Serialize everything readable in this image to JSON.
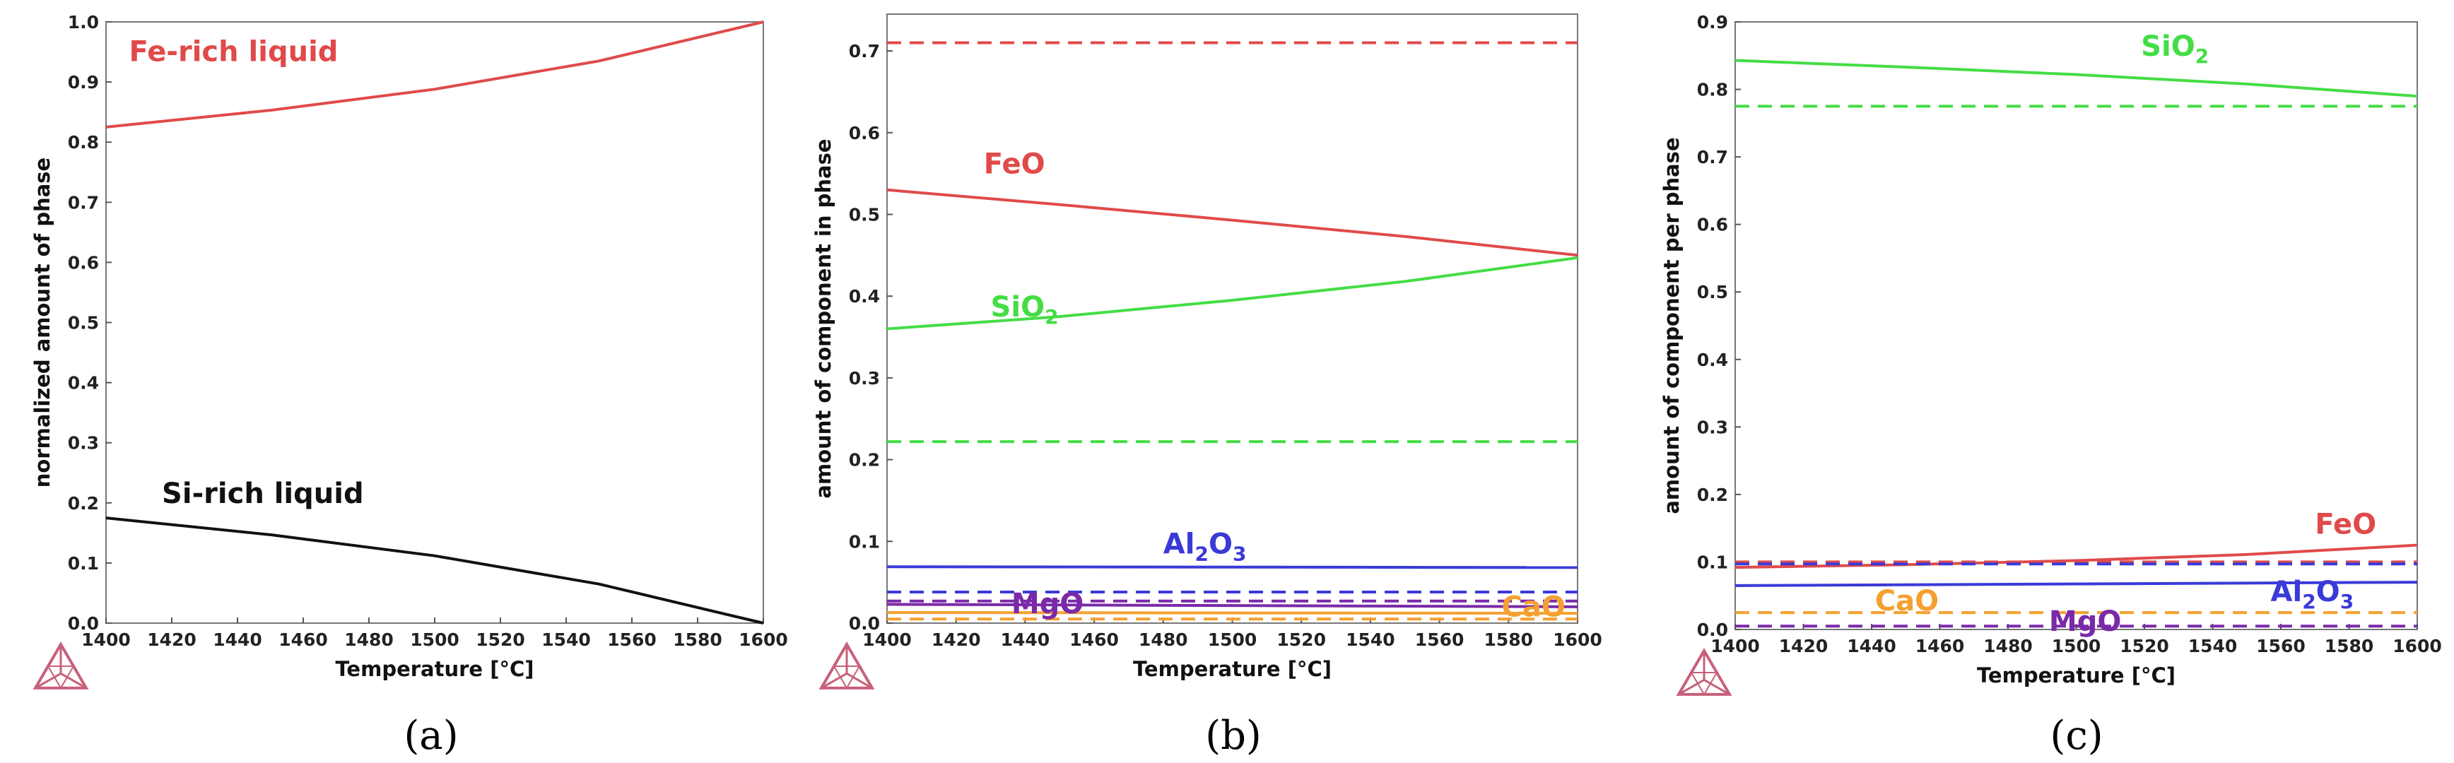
{
  "colors": {
    "red": "#e04a4a",
    "green": "#44dd44",
    "blue": "#3a3ad8",
    "purple": "#7a2aa8",
    "orange": "#f5a030",
    "black": "#111111",
    "logo": "#c8607a"
  },
  "chart_data": [
    {
      "type": "line",
      "panel": "a",
      "caption": "(a)",
      "caption_letter": "a",
      "xlabel": "Temperature [°C]",
      "ylabel": "normalized amount of phase",
      "xlim": [
        1400,
        1600
      ],
      "ylim": [
        0,
        1.0
      ],
      "xticks": [
        1400,
        1420,
        1440,
        1460,
        1480,
        1500,
        1520,
        1540,
        1560,
        1580,
        1600
      ],
      "yticks": [
        "0.0",
        "0.1",
        "0.2",
        "0.3",
        "0.4",
        "0.5",
        "0.6",
        "0.7",
        "0.8",
        "0.9",
        "1.0"
      ],
      "series": [
        {
          "name": "Fe-rich liquid",
          "label": "Fe-rich liquid",
          "color": "red",
          "style": "solid",
          "x": [
            1400,
            1450,
            1500,
            1550,
            1600
          ],
          "values": [
            0.825,
            0.853,
            0.888,
            0.935,
            1.0
          ]
        },
        {
          "name": "Si-rich liquid",
          "label": "Si-rich liquid",
          "color": "black",
          "style": "solid",
          "x": [
            1400,
            1450,
            1500,
            1550,
            1600
          ],
          "values": [
            0.175,
            0.147,
            0.112,
            0.065,
            0.0
          ]
        }
      ]
    },
    {
      "type": "line",
      "panel": "b",
      "caption": "(b)",
      "caption_letter": "b",
      "xlabel": "Temperature [°C]",
      "ylabel": "amount of component in phase",
      "xlim": [
        1400,
        1600
      ],
      "ylim": [
        0,
        0.745
      ],
      "xticks": [
        1400,
        1420,
        1440,
        1460,
        1480,
        1500,
        1520,
        1540,
        1560,
        1580,
        1600
      ],
      "yticks": [
        "0.0",
        "0.1",
        "0.2",
        "0.3",
        "0.4",
        "0.5",
        "0.6",
        "0.7"
      ],
      "series": [
        {
          "name": "FeO (Fe-rich)",
          "color": "red",
          "style": "dashed",
          "x": [
            1400,
            1600
          ],
          "values": [
            0.71,
            0.71
          ]
        },
        {
          "name": "FeO",
          "label": "FeO",
          "color": "red",
          "style": "solid",
          "x": [
            1400,
            1450,
            1500,
            1550,
            1600
          ],
          "values": [
            0.53,
            0.512,
            0.493,
            0.473,
            0.45
          ]
        },
        {
          "name": "SiO2",
          "label": "SiO",
          "label_sub": "2",
          "color": "green",
          "style": "solid",
          "x": [
            1400,
            1450,
            1500,
            1550,
            1600
          ],
          "values": [
            0.36,
            0.375,
            0.395,
            0.418,
            0.447
          ]
        },
        {
          "name": "SiO2 (Fe-rich)",
          "color": "green",
          "style": "dashed",
          "x": [
            1400,
            1600
          ],
          "values": [
            0.222,
            0.222
          ]
        },
        {
          "name": "Al2O3",
          "label": "Al",
          "label_sub": "2",
          "label_tail": "O",
          "label_sub2": "3",
          "color": "blue",
          "style": "solid",
          "x": [
            1400,
            1600
          ],
          "values": [
            0.069,
            0.068
          ]
        },
        {
          "name": "Al2O3 (Fe-rich)",
          "color": "blue",
          "style": "dashed",
          "x": [
            1400,
            1600
          ],
          "values": [
            0.038,
            0.038
          ]
        },
        {
          "name": "MgO",
          "label": "MgO",
          "color": "purple",
          "style": "solid",
          "x": [
            1400,
            1600
          ],
          "values": [
            0.023,
            0.02
          ]
        },
        {
          "name": "MgO (Fe-rich)",
          "color": "purple",
          "style": "dashed",
          "x": [
            1400,
            1600
          ],
          "values": [
            0.027,
            0.027
          ]
        },
        {
          "name": "CaO",
          "label": "CaO",
          "color": "orange",
          "style": "solid",
          "x": [
            1400,
            1600
          ],
          "values": [
            0.013,
            0.012
          ]
        },
        {
          "name": "CaO (Fe-rich)",
          "color": "orange",
          "style": "dashed",
          "x": [
            1400,
            1600
          ],
          "values": [
            0.005,
            0.005
          ]
        }
      ]
    },
    {
      "type": "line",
      "panel": "c",
      "caption": "(c)",
      "caption_letter": "c",
      "xlabel": "Temperature [°C]",
      "ylabel": "amount of component per phase",
      "xlim": [
        1400,
        1600
      ],
      "ylim": [
        0,
        0.9
      ],
      "xticks": [
        1400,
        1420,
        1440,
        1460,
        1480,
        1500,
        1520,
        1540,
        1560,
        1580,
        1600
      ],
      "yticks": [
        "0.0",
        "0.1",
        "0.2",
        "0.3",
        "0.4",
        "0.5",
        "0.6",
        "0.7",
        "0.8",
        "0.9"
      ],
      "series": [
        {
          "name": "SiO2",
          "label": "SiO",
          "label_sub": "2",
          "color": "green",
          "style": "solid",
          "x": [
            1400,
            1450,
            1500,
            1550,
            1600
          ],
          "values": [
            0.843,
            0.833,
            0.822,
            0.808,
            0.79
          ]
        },
        {
          "name": "SiO2 (Si-rich)",
          "color": "green",
          "style": "dashed",
          "x": [
            1400,
            1600
          ],
          "values": [
            0.775,
            0.775
          ]
        },
        {
          "name": "FeO",
          "label": "FeO",
          "color": "red",
          "style": "solid",
          "x": [
            1400,
            1450,
            1500,
            1550,
            1600
          ],
          "values": [
            0.092,
            0.096,
            0.102,
            0.111,
            0.125
          ]
        },
        {
          "name": "FeO (Si-rich)",
          "color": "red",
          "style": "dashed",
          "x": [
            1400,
            1600
          ],
          "values": [
            0.1,
            0.1
          ]
        },
        {
          "name": "Al2O3 (Si-rich)",
          "color": "blue",
          "style": "dashed",
          "x": [
            1400,
            1600
          ],
          "values": [
            0.097,
            0.097
          ]
        },
        {
          "name": "Al2O3",
          "label": "Al",
          "label_sub": "2",
          "label_tail": "O",
          "label_sub2": "3",
          "color": "blue",
          "style": "solid",
          "x": [
            1400,
            1600
          ],
          "values": [
            0.065,
            0.07
          ]
        },
        {
          "name": "CaO",
          "label": "CaO",
          "color": "orange",
          "style": "dashed",
          "x": [
            1400,
            1600
          ],
          "values": [
            0.025,
            0.025
          ]
        },
        {
          "name": "MgO",
          "label": "MgO",
          "color": "purple",
          "style": "dashed",
          "x": [
            1400,
            1600
          ],
          "values": [
            0.005,
            0.005
          ]
        }
      ]
    }
  ]
}
